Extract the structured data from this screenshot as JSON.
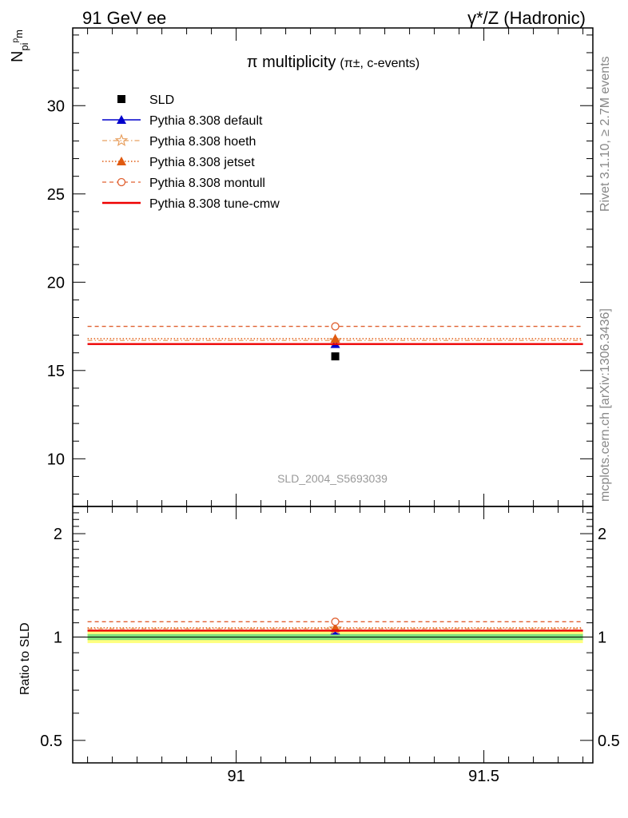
{
  "header": {
    "left": "91 GeV ee",
    "right": "γ*/Z (Hadronic)"
  },
  "side_labels": {
    "rivet": "Rivet 3.1.10, ≥ 2.7M events",
    "mcplots": "mcplots.cern.ch [arXiv:1306.3436]"
  },
  "analysis_tag": "SLD_2004_S5693039",
  "chart_data": [
    {
      "type": "scatter",
      "panel": "main",
      "title": "π multiplicity",
      "subtitle": "(π±, c-events)",
      "ylabel": "N_pi^pm",
      "xlim": [
        90.67,
        91.72
      ],
      "ylim": [
        7.3,
        34.4
      ],
      "yticks": [
        10,
        15,
        20,
        25,
        30
      ],
      "grid": false,
      "legend_position": "top-left",
      "data": {
        "name": "SLD",
        "x": [
          91.2
        ],
        "y": [
          15.8
        ]
      },
      "series": [
        {
          "name": "Pythia 8.308 default",
          "x": [
            91.2
          ],
          "xrange": [
            90.7,
            91.7
          ],
          "y": [
            16.5
          ],
          "color": "#0000cc",
          "marker": "filled-triangle",
          "line": "solid"
        },
        {
          "name": "Pythia 8.308 hoeth",
          "x": [
            91.2
          ],
          "xrange": [
            90.7,
            91.7
          ],
          "y": [
            16.7
          ],
          "color": "#e8a060",
          "marker": "open-star",
          "line": "dash-dot"
        },
        {
          "name": "Pythia 8.308 jetset",
          "x": [
            91.2
          ],
          "xrange": [
            90.7,
            91.7
          ],
          "y": [
            16.8
          ],
          "color": "#e05a10",
          "marker": "filled-triangle",
          "line": "dotted"
        },
        {
          "name": "Pythia 8.308 montull",
          "x": [
            91.2
          ],
          "xrange": [
            90.7,
            91.7
          ],
          "y": [
            17.5
          ],
          "color": "#e06030",
          "marker": "open-circle",
          "line": "dashed"
        },
        {
          "name": "Pythia 8.308 tune-cmw",
          "x": [
            91.2
          ],
          "xrange": [
            90.7,
            91.7
          ],
          "y": [
            16.5
          ],
          "color": "#ee0000",
          "marker": "none",
          "line": "solid-thick"
        }
      ]
    },
    {
      "type": "scatter",
      "panel": "ratio",
      "ylabel": "Ratio to SLD",
      "xlim": [
        90.67,
        91.72
      ],
      "ylim": [
        0.43,
        2.4
      ],
      "yscale": "log",
      "yticks": [
        0.5,
        1,
        2
      ],
      "xticks": [
        91,
        91.5
      ],
      "grid": false,
      "uncertainty_band": [
        {
          "y": [
            0.96,
            1.04
          ],
          "color": "#ffff80"
        },
        {
          "y": [
            0.98,
            1.02
          ],
          "color": "#7de07d"
        }
      ],
      "series": [
        {
          "name": "Pythia 8.308 default",
          "x": [
            91.2
          ],
          "y": [
            1.044
          ],
          "color": "#0000cc"
        },
        {
          "name": "Pythia 8.308 hoeth",
          "x": [
            91.2
          ],
          "y": [
            1.057
          ],
          "color": "#e8a060"
        },
        {
          "name": "Pythia 8.308 jetset",
          "x": [
            91.2
          ],
          "y": [
            1.063
          ],
          "color": "#e05a10"
        },
        {
          "name": "Pythia 8.308 montull",
          "x": [
            91.2
          ],
          "y": [
            1.108
          ],
          "color": "#e06030"
        },
        {
          "name": "Pythia 8.308 tune-cmw",
          "x": [
            91.2
          ],
          "y": [
            1.044
          ],
          "color": "#ee0000"
        }
      ]
    }
  ]
}
